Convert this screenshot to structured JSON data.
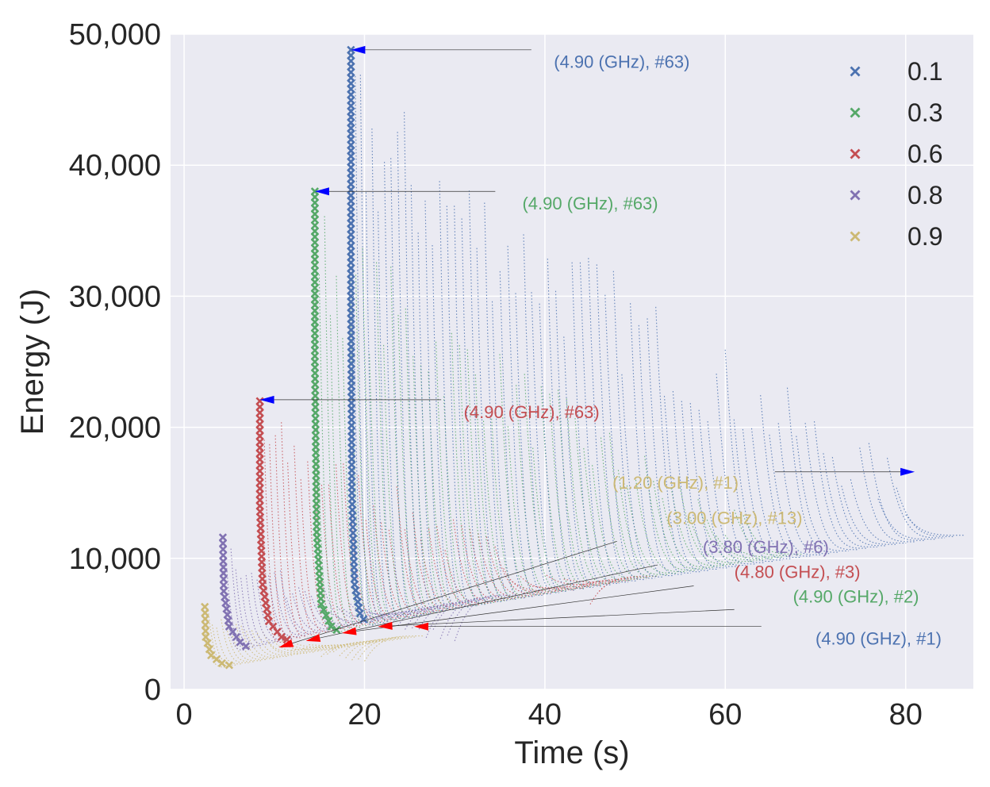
{
  "chart_data": {
    "type": "scatter",
    "title": "",
    "xlabel": "Time (s)",
    "ylabel": "Energy (J)",
    "xlim": [
      -1.5,
      87.5
    ],
    "ylim": [
      0,
      50000
    ],
    "xticks": [
      0,
      20,
      40,
      60,
      80
    ],
    "xtick_labels": [
      "0",
      "20",
      "40",
      "60",
      "80"
    ],
    "yticks": [
      0,
      10000,
      20000,
      30000,
      40000,
      50000
    ],
    "ytick_labels": [
      "0",
      "10,000",
      "20,000",
      "30,000",
      "40,000",
      "50,000"
    ],
    "grid": true,
    "legend_position": "top-right",
    "legend_marker": "×",
    "series": [
      {
        "name": "0.1",
        "color": "#4c72b0",
        "frontier": {
          "x": [
            18.5,
            18.5,
            18.6,
            18.9,
            19.5,
            20.3
          ],
          "y": [
            48800,
            30000,
            15000,
            8000,
            5800,
            4900
          ]
        }
      },
      {
        "name": "0.3",
        "color": "#55a868",
        "frontier": {
          "x": [
            14.5,
            14.5,
            14.7,
            15.2,
            16.3,
            17.5
          ],
          "y": [
            38000,
            25000,
            12000,
            6500,
            4800,
            4300
          ]
        }
      },
      {
        "name": "0.6",
        "color": "#c44e52",
        "frontier": {
          "x": [
            8.4,
            8.4,
            8.7,
            9.4,
            10.8,
            12.0
          ],
          "y": [
            22000,
            14000,
            8000,
            5200,
            4000,
            3600
          ]
        }
      },
      {
        "name": "0.8",
        "color": "#8172b2",
        "frontier": {
          "x": [
            4.3,
            4.4,
            5.0,
            6.2,
            7.5
          ],
          "y": [
            11600,
            7500,
            4800,
            3600,
            3000
          ]
        }
      },
      {
        "name": "0.9",
        "color": "#ccb974",
        "frontier": {
          "x": [
            2.3,
            2.4,
            3.0,
            4.2,
            5.8
          ],
          "y": [
            6300,
            4000,
            2600,
            2000,
            1700
          ]
        }
      }
    ],
    "annotations": [
      {
        "text": "(4.90 (GHz), #63)",
        "series": "0.1",
        "point": [
          18.5,
          48800
        ],
        "arrow_start": [
          38.5,
          48800
        ],
        "text_pos": [
          41,
          47900
        ]
      },
      {
        "text": "(4.90 (GHz), #63)",
        "series": "0.3",
        "point": [
          14.5,
          38000
        ],
        "arrow_start": [
          34.5,
          38000
        ],
        "text_pos": [
          37.5,
          37100
        ]
      },
      {
        "text": "(4.90 (GHz), #63)",
        "series": "0.6",
        "point": [
          8.4,
          22100
        ],
        "arrow_start": [
          28.5,
          22100
        ],
        "text_pos": [
          31,
          21200
        ]
      },
      {
        "text": "(1.20 (GHz), #1)",
        "series": "0.9",
        "point": [
          81,
          16600
        ],
        "arrow_start": [
          65.5,
          16600
        ],
        "text_pos": [
          47.5,
          15800
        ]
      },
      {
        "text": "(3.00 (GHz), #13)",
        "series": "0.9",
        "point": [
          10.5,
          3200
        ],
        "arrow_start": [
          48,
          11300
        ],
        "text_pos": [
          53.5,
          13100
        ]
      },
      {
        "text": "(3.80 (GHz), #6)",
        "series": "0.8",
        "point": [
          13.5,
          3700
        ],
        "arrow_start": [
          52.5,
          9500
        ],
        "text_pos": [
          57.5,
          10900
        ]
      },
      {
        "text": "(4.80 (GHz), #3)",
        "series": "0.6",
        "point": [
          17.5,
          4300
        ],
        "arrow_start": [
          56.5,
          7900
        ],
        "text_pos": [
          61,
          9000
        ]
      },
      {
        "text": "(4.90 (GHz), #2)",
        "series": "0.3",
        "point": [
          21.5,
          4800
        ],
        "arrow_start": [
          61,
          6100
        ],
        "text_pos": [
          67.5,
          7100
        ]
      },
      {
        "text": "(4.90 (GHz), #1)",
        "series": "0.1",
        "point": [
          25.5,
          4800
        ],
        "arrow_start": [
          64,
          4800
        ],
        "text_pos": [
          70,
          3900
        ]
      }
    ]
  }
}
